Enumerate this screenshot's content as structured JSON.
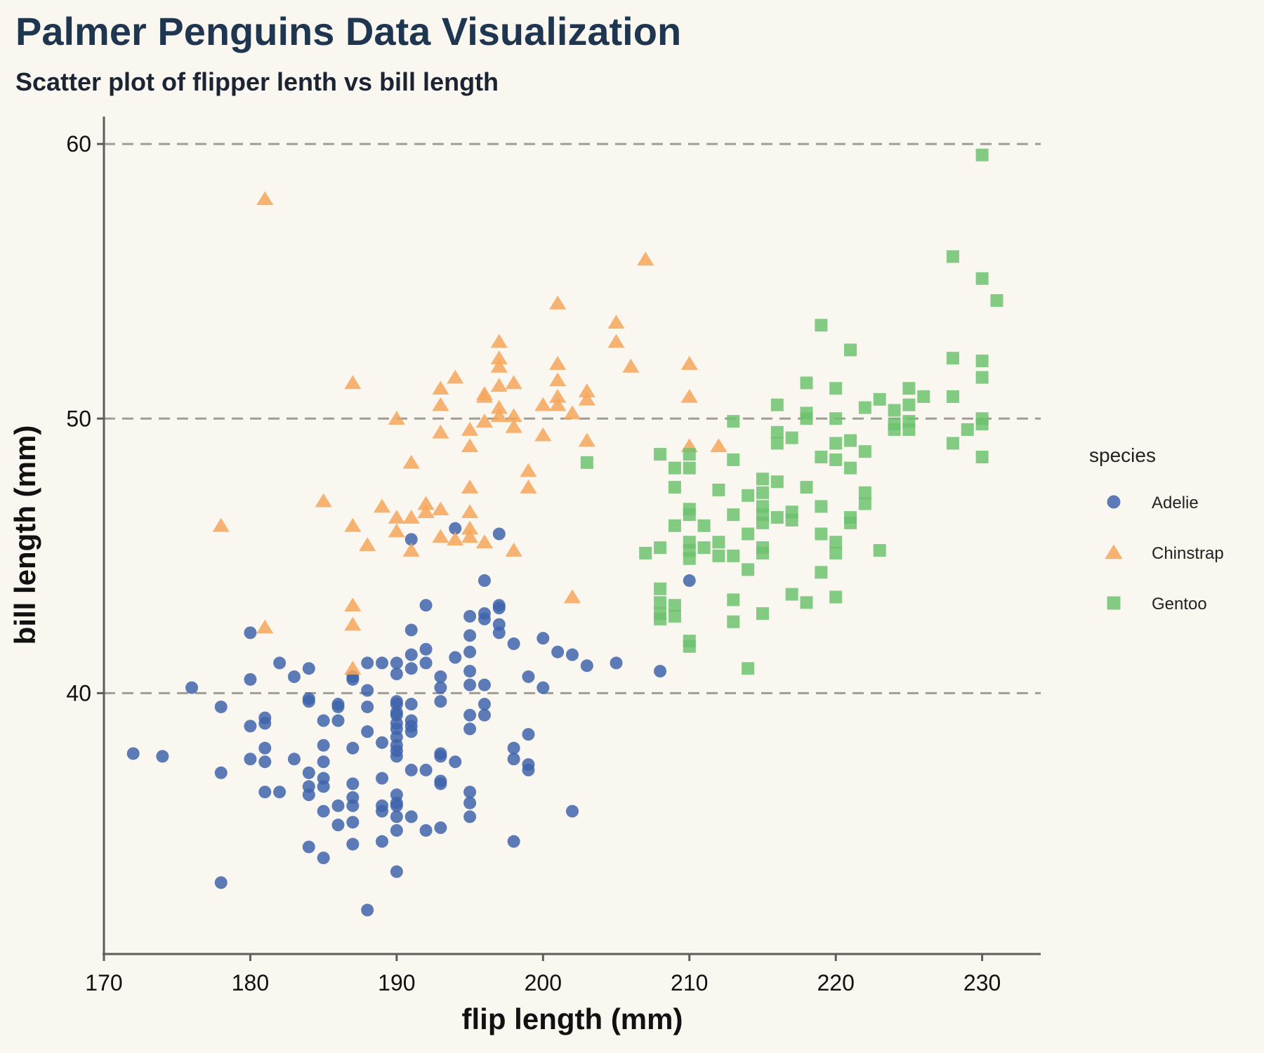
{
  "title": "Palmer Penguins Data Visualization",
  "subtitle": "Scatter plot of flipper lenth vs bill length",
  "chart_data": {
    "type": "scatter",
    "xlabel": "flip length (mm)",
    "ylabel": "bill length (mm)",
    "xlim": [
      170,
      234
    ],
    "ylim": [
      30.5,
      61
    ],
    "xticks": [
      170,
      180,
      190,
      200,
      210,
      220,
      230
    ],
    "yticks": [
      40,
      50,
      60
    ],
    "grid": "horizontal dashed",
    "legend": {
      "title": "species",
      "placement": "right"
    },
    "series": [
      {
        "name": "Adelie",
        "marker": "circle",
        "color": "#3e64ab",
        "points": [
          [
            172,
            37.8
          ],
          [
            174,
            37.7
          ],
          [
            176,
            40.2
          ],
          [
            178,
            39.5
          ],
          [
            178,
            37.1
          ],
          [
            178,
            33.1
          ],
          [
            180,
            42.2
          ],
          [
            180,
            40.5
          ],
          [
            180,
            38.8
          ],
          [
            180,
            37.6
          ],
          [
            181,
            39.1
          ],
          [
            181,
            38.9
          ],
          [
            181,
            38.0
          ],
          [
            181,
            37.5
          ],
          [
            181,
            36.4
          ],
          [
            182,
            41.1
          ],
          [
            182,
            36.4
          ],
          [
            183,
            40.6
          ],
          [
            183,
            37.6
          ],
          [
            184,
            40.9
          ],
          [
            184,
            39.8
          ],
          [
            184,
            39.7
          ],
          [
            184,
            37.1
          ],
          [
            184,
            36.6
          ],
          [
            184,
            36.3
          ],
          [
            184,
            34.4
          ],
          [
            185,
            39.0
          ],
          [
            185,
            38.1
          ],
          [
            185,
            37.5
          ],
          [
            185,
            36.9
          ],
          [
            185,
            36.6
          ],
          [
            185,
            35.7
          ],
          [
            185,
            34.0
          ],
          [
            186,
            39.6
          ],
          [
            186,
            39.5
          ],
          [
            186,
            39.0
          ],
          [
            186,
            35.9
          ],
          [
            186,
            35.2
          ],
          [
            187,
            40.5
          ],
          [
            187,
            40.6
          ],
          [
            187,
            38.0
          ],
          [
            187,
            36.7
          ],
          [
            187,
            36.2
          ],
          [
            187,
            35.9
          ],
          [
            187,
            35.3
          ],
          [
            187,
            34.5
          ],
          [
            188,
            41.1
          ],
          [
            188,
            40.1
          ],
          [
            188,
            39.5
          ],
          [
            188,
            38.6
          ],
          [
            188,
            32.1
          ],
          [
            189,
            41.1
          ],
          [
            189,
            38.2
          ],
          [
            189,
            36.9
          ],
          [
            189,
            35.9
          ],
          [
            189,
            35.7
          ],
          [
            189,
            34.6
          ],
          [
            190,
            41.1
          ],
          [
            190,
            40.7
          ],
          [
            190,
            39.7
          ],
          [
            190,
            39.6
          ],
          [
            190,
            39.3
          ],
          [
            190,
            39.2
          ],
          [
            190,
            38.9
          ],
          [
            190,
            38.7
          ],
          [
            190,
            38.4
          ],
          [
            190,
            38.1
          ],
          [
            190,
            37.9
          ],
          [
            190,
            37.7
          ],
          [
            190,
            36.3
          ],
          [
            190,
            36.0
          ],
          [
            190,
            35.9
          ],
          [
            190,
            35.5
          ],
          [
            190,
            35.0
          ],
          [
            190,
            33.5
          ],
          [
            191,
            45.6
          ],
          [
            191,
            42.3
          ],
          [
            191,
            41.4
          ],
          [
            191,
            40.9
          ],
          [
            191,
            39.6
          ],
          [
            191,
            39.0
          ],
          [
            191,
            38.8
          ],
          [
            191,
            38.6
          ],
          [
            191,
            37.2
          ],
          [
            191,
            35.5
          ],
          [
            192,
            43.2
          ],
          [
            192,
            41.6
          ],
          [
            192,
            41.1
          ],
          [
            192,
            37.2
          ],
          [
            192,
            35.0
          ],
          [
            193,
            40.6
          ],
          [
            193,
            40.2
          ],
          [
            193,
            39.7
          ],
          [
            193,
            37.8
          ],
          [
            193,
            37.7
          ],
          [
            193,
            36.8
          ],
          [
            193,
            36.7
          ],
          [
            193,
            35.1
          ],
          [
            194,
            46.0
          ],
          [
            194,
            41.3
          ],
          [
            194,
            37.5
          ],
          [
            195,
            42.8
          ],
          [
            195,
            42.1
          ],
          [
            195,
            41.5
          ],
          [
            195,
            40.8
          ],
          [
            195,
            40.3
          ],
          [
            195,
            39.2
          ],
          [
            195,
            38.7
          ],
          [
            195,
            36.4
          ],
          [
            195,
            36.0
          ],
          [
            195,
            35.5
          ],
          [
            196,
            44.1
          ],
          [
            196,
            42.9
          ],
          [
            196,
            42.7
          ],
          [
            196,
            40.3
          ],
          [
            196,
            39.6
          ],
          [
            196,
            39.2
          ],
          [
            197,
            45.8
          ],
          [
            197,
            43.2
          ],
          [
            197,
            43.1
          ],
          [
            197,
            42.5
          ],
          [
            197,
            42.2
          ],
          [
            198,
            41.8
          ],
          [
            198,
            38.0
          ],
          [
            198,
            37.6
          ],
          [
            198,
            34.6
          ],
          [
            199,
            40.6
          ],
          [
            199,
            38.5
          ],
          [
            199,
            37.4
          ],
          [
            199,
            37.2
          ],
          [
            200,
            42.0
          ],
          [
            200,
            40.2
          ],
          [
            201,
            41.5
          ],
          [
            202,
            41.4
          ],
          [
            202,
            35.7
          ],
          [
            203,
            41.0
          ],
          [
            205,
            41.1
          ],
          [
            208,
            40.8
          ],
          [
            210,
            44.1
          ]
        ]
      },
      {
        "name": "Chinstrap",
        "marker": "triangle",
        "color": "#f5a65b",
        "points": [
          [
            178,
            46.1
          ],
          [
            181,
            58.0
          ],
          [
            181,
            42.4
          ],
          [
            185,
            47.0
          ],
          [
            187,
            51.3
          ],
          [
            187,
            46.1
          ],
          [
            187,
            43.2
          ],
          [
            187,
            42.5
          ],
          [
            187,
            40.9
          ],
          [
            188,
            45.4
          ],
          [
            189,
            46.8
          ],
          [
            190,
            50.0
          ],
          [
            190,
            46.4
          ],
          [
            190,
            45.9
          ],
          [
            191,
            48.4
          ],
          [
            191,
            46.4
          ],
          [
            191,
            45.2
          ],
          [
            192,
            46.9
          ],
          [
            192,
            46.6
          ],
          [
            193,
            51.1
          ],
          [
            193,
            50.5
          ],
          [
            193,
            49.5
          ],
          [
            193,
            46.7
          ],
          [
            193,
            45.7
          ],
          [
            194,
            51.5
          ],
          [
            194,
            45.6
          ],
          [
            195,
            49.6
          ],
          [
            195,
            49.0
          ],
          [
            195,
            47.5
          ],
          [
            195,
            46.6
          ],
          [
            195,
            46.0
          ],
          [
            195,
            45.7
          ],
          [
            196,
            50.8
          ],
          [
            196,
            50.9
          ],
          [
            196,
            49.9
          ],
          [
            196,
            45.5
          ],
          [
            197,
            52.8
          ],
          [
            197,
            52.2
          ],
          [
            197,
            51.9
          ],
          [
            197,
            51.2
          ],
          [
            197,
            50.4
          ],
          [
            197,
            50.1
          ],
          [
            198,
            51.3
          ],
          [
            198,
            50.1
          ],
          [
            198,
            49.7
          ],
          [
            198,
            45.2
          ],
          [
            199,
            48.1
          ],
          [
            199,
            47.5
          ],
          [
            200,
            50.5
          ],
          [
            200,
            49.4
          ],
          [
            201,
            54.2
          ],
          [
            201,
            52.0
          ],
          [
            201,
            51.4
          ],
          [
            201,
            50.8
          ],
          [
            201,
            50.5
          ],
          [
            202,
            50.2
          ],
          [
            202,
            43.5
          ],
          [
            203,
            51.0
          ],
          [
            203,
            50.7
          ],
          [
            203,
            49.2
          ],
          [
            205,
            53.5
          ],
          [
            205,
            52.8
          ],
          [
            206,
            51.9
          ],
          [
            207,
            55.8
          ],
          [
            210,
            52.0
          ],
          [
            210,
            50.8
          ],
          [
            210,
            49.0
          ],
          [
            212,
            49.0
          ]
        ]
      },
      {
        "name": "Gentoo",
        "marker": "square",
        "color": "#6dc26f",
        "points": [
          [
            203,
            48.4
          ],
          [
            207,
            45.1
          ],
          [
            208,
            48.7
          ],
          [
            208,
            45.3
          ],
          [
            208,
            43.8
          ],
          [
            208,
            43.3
          ],
          [
            208,
            42.9
          ],
          [
            208,
            42.7
          ],
          [
            209,
            48.2
          ],
          [
            209,
            47.5
          ],
          [
            209,
            46.1
          ],
          [
            209,
            43.2
          ],
          [
            209,
            42.8
          ],
          [
            210,
            48.7
          ],
          [
            210,
            48.2
          ],
          [
            210,
            46.7
          ],
          [
            210,
            46.5
          ],
          [
            210,
            45.5
          ],
          [
            210,
            45.2
          ],
          [
            210,
            44.9
          ],
          [
            210,
            41.9
          ],
          [
            210,
            41.7
          ],
          [
            211,
            46.1
          ],
          [
            211,
            45.3
          ],
          [
            212,
            47.4
          ],
          [
            212,
            45.5
          ],
          [
            212,
            45.0
          ],
          [
            213,
            49.9
          ],
          [
            213,
            48.5
          ],
          [
            213,
            46.5
          ],
          [
            213,
            45.0
          ],
          [
            213,
            43.4
          ],
          [
            213,
            42.6
          ],
          [
            214,
            47.2
          ],
          [
            214,
            45.8
          ],
          [
            214,
            44.5
          ],
          [
            214,
            40.9
          ],
          [
            215,
            47.8
          ],
          [
            215,
            47.3
          ],
          [
            215,
            46.8
          ],
          [
            215,
            46.5
          ],
          [
            215,
            46.2
          ],
          [
            215,
            45.3
          ],
          [
            215,
            45.1
          ],
          [
            215,
            42.9
          ],
          [
            216,
            50.5
          ],
          [
            216,
            49.5
          ],
          [
            216,
            49.1
          ],
          [
            216,
            47.7
          ],
          [
            216,
            46.4
          ],
          [
            217,
            49.3
          ],
          [
            217,
            46.6
          ],
          [
            217,
            46.3
          ],
          [
            217,
            43.6
          ],
          [
            218,
            51.3
          ],
          [
            218,
            50.2
          ],
          [
            218,
            50.0
          ],
          [
            218,
            47.5
          ],
          [
            218,
            43.3
          ],
          [
            219,
            53.4
          ],
          [
            219,
            48.6
          ],
          [
            219,
            46.8
          ],
          [
            219,
            45.8
          ],
          [
            219,
            44.4
          ],
          [
            220,
            51.1
          ],
          [
            220,
            50.0
          ],
          [
            220,
            49.1
          ],
          [
            220,
            48.5
          ],
          [
            220,
            45.5
          ],
          [
            220,
            45.1
          ],
          [
            220,
            43.5
          ],
          [
            221,
            52.5
          ],
          [
            221,
            49.2
          ],
          [
            221,
            48.2
          ],
          [
            221,
            46.4
          ],
          [
            221,
            46.2
          ],
          [
            222,
            50.4
          ],
          [
            222,
            48.8
          ],
          [
            222,
            47.3
          ],
          [
            222,
            46.9
          ],
          [
            223,
            50.7
          ],
          [
            223,
            45.2
          ],
          [
            224,
            50.3
          ],
          [
            224,
            49.8
          ],
          [
            224,
            49.6
          ],
          [
            225,
            51.1
          ],
          [
            225,
            50.5
          ],
          [
            225,
            49.9
          ],
          [
            225,
            49.6
          ],
          [
            226,
            50.8
          ],
          [
            228,
            55.9
          ],
          [
            228,
            52.2
          ],
          [
            228,
            50.8
          ],
          [
            228,
            49.1
          ],
          [
            229,
            49.6
          ],
          [
            230,
            59.6
          ],
          [
            230,
            55.1
          ],
          [
            230,
            52.1
          ],
          [
            230,
            51.5
          ],
          [
            230,
            50.0
          ],
          [
            230,
            49.8
          ],
          [
            230,
            48.6
          ],
          [
            231,
            54.3
          ]
        ]
      }
    ]
  }
}
